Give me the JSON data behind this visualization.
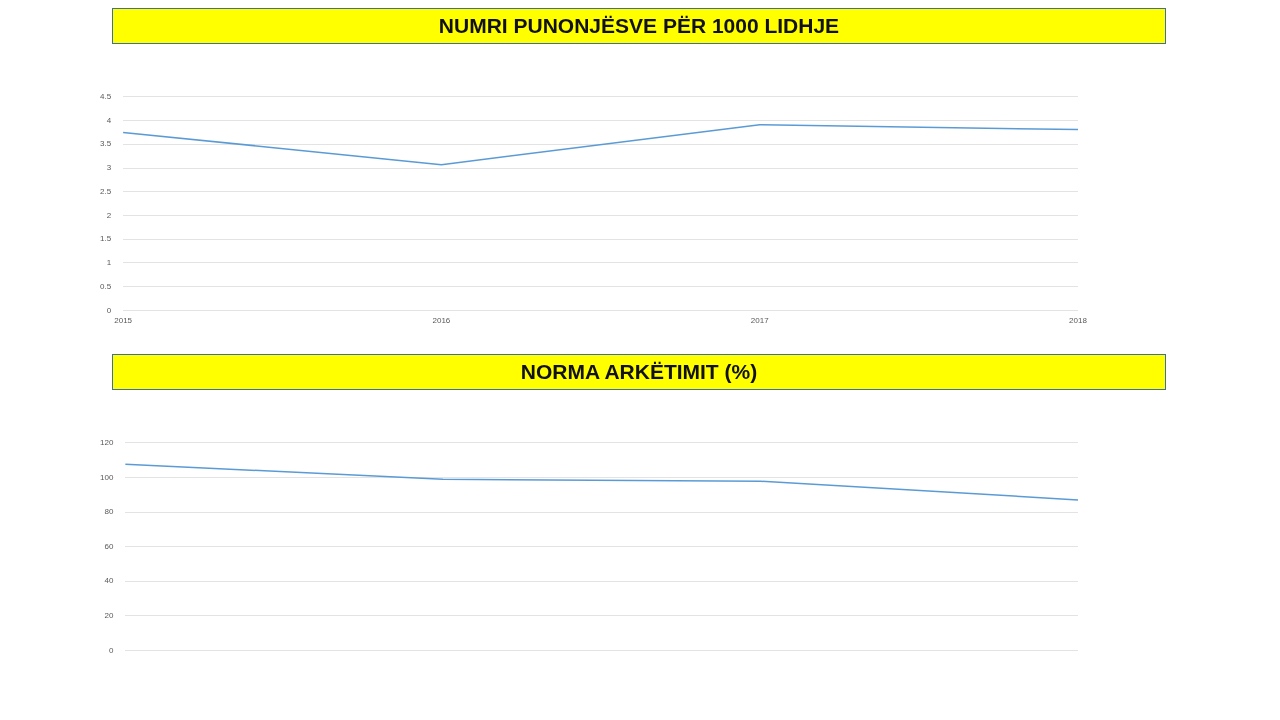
{
  "chart_data": [
    {
      "type": "line",
      "title": "NUMRI PUNONJËSVE PËR 1000 LIDHJE",
      "categories": [
        "2015",
        "2016",
        "2017",
        "2018"
      ],
      "series": [
        {
          "color": "#5b9bd5",
          "values": [
            3.75,
            3.07,
            3.91,
            3.81
          ]
        }
      ],
      "ylim": [
        0,
        4.5
      ],
      "yticks": [
        0,
        0.5,
        1,
        1.5,
        2,
        2.5,
        3,
        3.5,
        4,
        4.5
      ],
      "grid": "y",
      "marker": "none"
    },
    {
      "type": "line",
      "title": "NORMA ARKËTIMIT (%)",
      "categories": [
        null,
        null,
        null,
        null
      ],
      "series": [
        {
          "color": "#5b9bd5",
          "values": [
            107.6,
            98.9,
            97.8,
            87.0
          ]
        }
      ],
      "ylim": [
        0,
        120
      ],
      "yticks": [
        0,
        20,
        40,
        60,
        80,
        100,
        120
      ],
      "grid": "y",
      "marker": "none"
    }
  ]
}
